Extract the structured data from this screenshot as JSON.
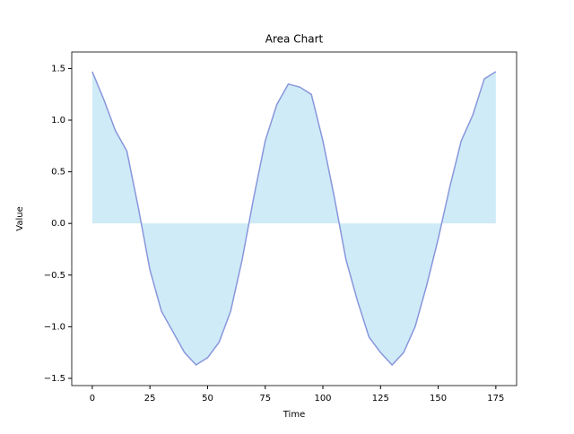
{
  "chart_data": {
    "type": "area",
    "title": "Area Chart",
    "x_label": "Time",
    "y_label": "Value",
    "x": [
      0,
      5,
      10,
      15,
      20,
      25,
      30,
      35,
      40,
      45,
      50,
      55,
      60,
      65,
      70,
      75,
      80,
      85,
      90,
      95,
      100,
      105,
      110,
      115,
      120,
      125,
      130,
      135,
      140,
      145,
      150,
      155,
      160,
      165,
      170,
      175
    ],
    "series": [
      {
        "line_color": "#8896dc",
        "fill_color": "#87ceeb",
        "values": [
          1.47,
          1.2,
          0.9,
          0.7,
          0.15,
          -0.45,
          -0.85,
          -1.05,
          -1.25,
          -1.37,
          -1.3,
          -1.15,
          -0.85,
          -0.35,
          0.25,
          0.8,
          1.15,
          1.35,
          1.32,
          1.25,
          0.8,
          0.25,
          -0.35,
          -0.75,
          -1.1,
          -1.25,
          -1.37,
          -1.25,
          -1.0,
          -0.6,
          -0.15,
          0.35,
          0.8,
          1.05,
          1.4,
          1.47
        ]
      }
    ],
    "xlim": [
      -8.9,
      184
    ],
    "ylim": [
      -1.57,
      1.66
    ],
    "xticks": [
      0,
      25,
      50,
      75,
      100,
      125,
      150,
      175
    ],
    "yticks": [
      {
        "value": -1.5,
        "label": "−1.5"
      },
      {
        "value": -1.0,
        "label": "−1.0"
      },
      {
        "value": -0.5,
        "label": "−0.5"
      },
      {
        "value": 0,
        "label": "0.0"
      },
      0.5,
      {
        "value": 1.0,
        "label": "1.0"
      },
      {
        "value": 1.5,
        "label": "1.5"
      }
    ]
  }
}
